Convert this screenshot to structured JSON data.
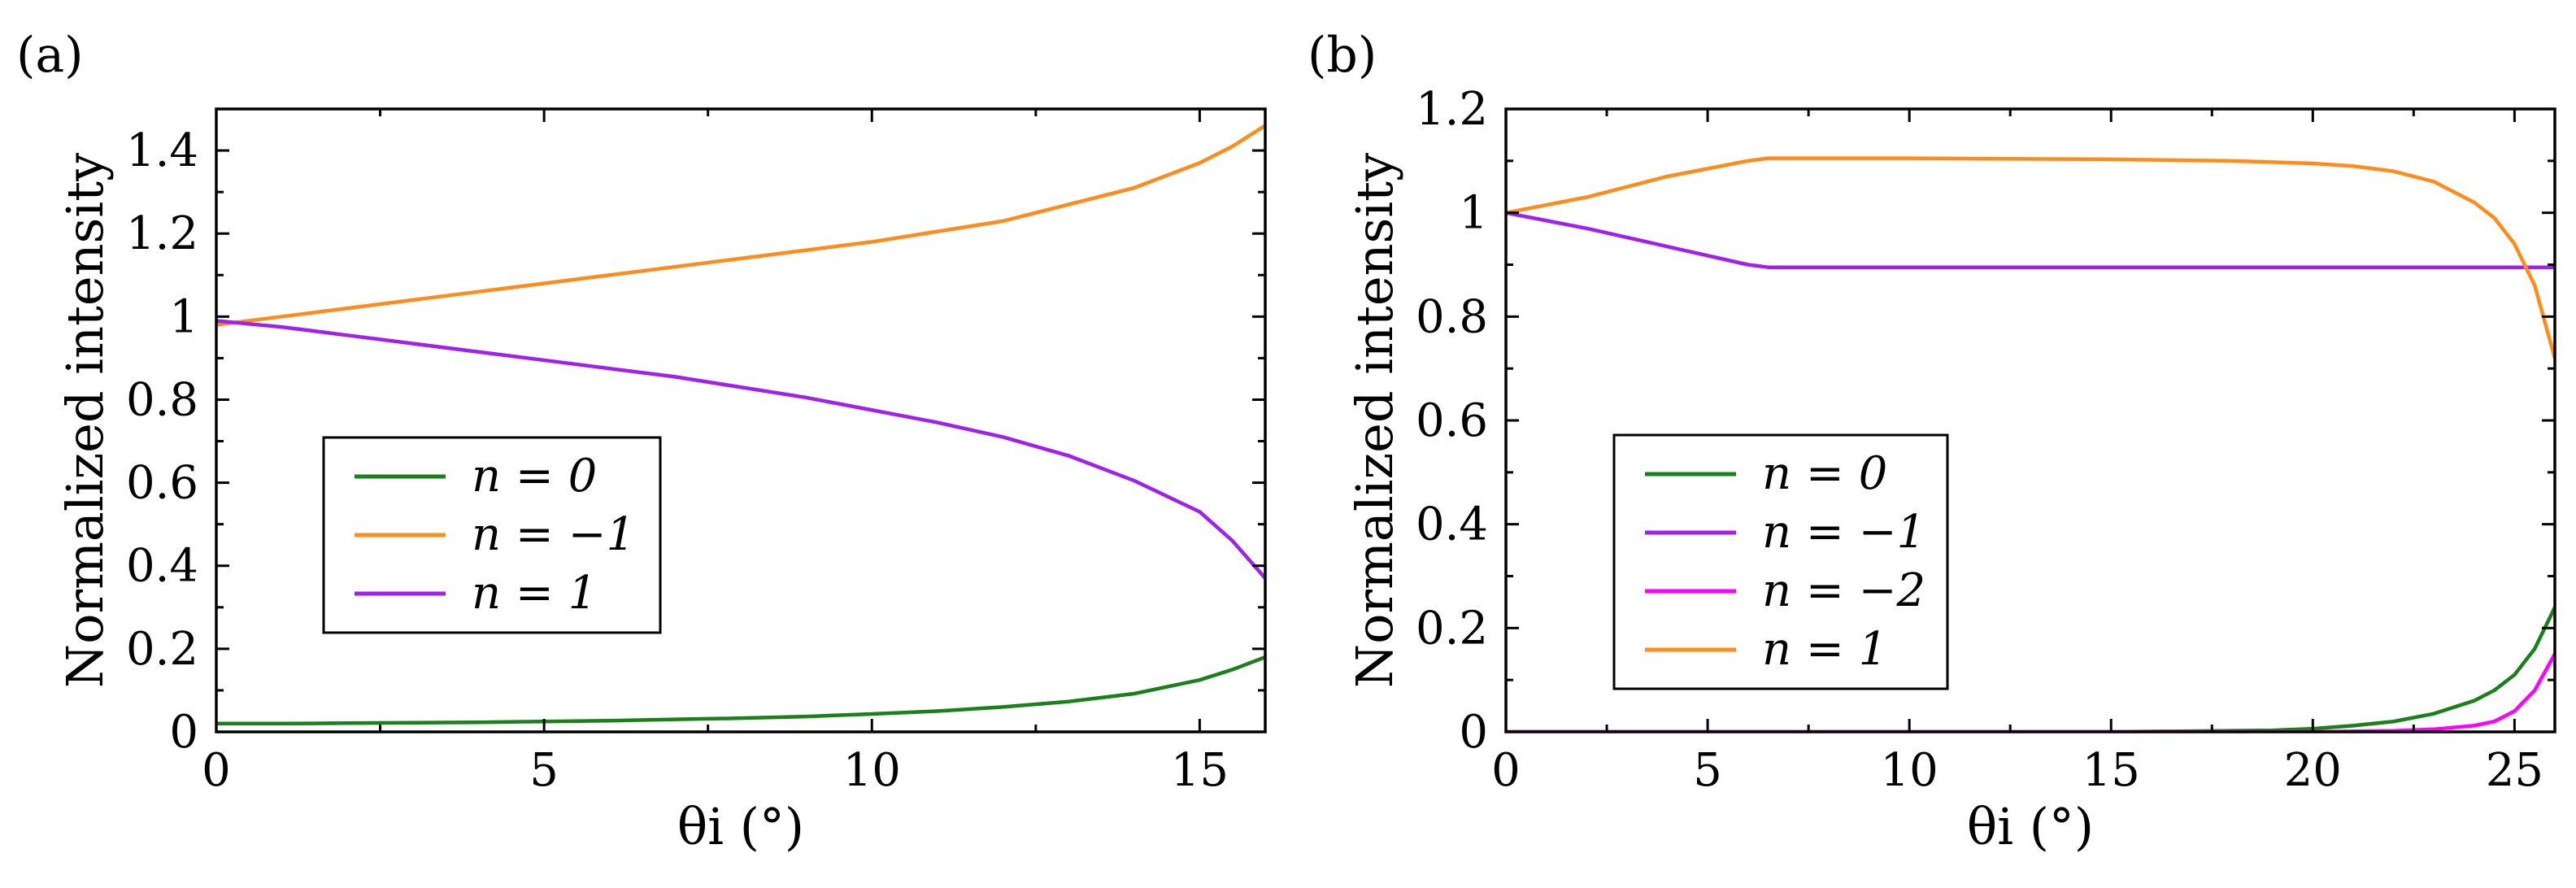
{
  "chart_data": [
    {
      "panel_label": "(a)",
      "type": "line",
      "xlabel": "θi (°)",
      "ylabel": "Normalized intensity",
      "xlim": [
        0,
        16
      ],
      "ylim": [
        0,
        1.5
      ],
      "xticks": [
        0,
        5,
        10,
        15
      ],
      "xtick_labels": [
        "0",
        "5",
        "10",
        "15"
      ],
      "yticks": [
        0,
        0.2,
        0.4,
        0.6,
        0.8,
        1,
        1.2,
        1.4
      ],
      "ytick_labels": [
        "0",
        "0.2",
        "0.4",
        "0.6",
        "0.8",
        "1",
        "1.2",
        "1.4"
      ],
      "legend_position": "middle-left",
      "series": [
        {
          "name": "n = 0",
          "color": "#1a801a",
          "x": [
            0,
            1,
            2,
            3,
            4,
            5,
            6,
            7,
            8,
            9,
            10,
            11,
            12,
            13,
            14,
            15,
            15.5,
            16
          ],
          "values": [
            0.02,
            0.02,
            0.021,
            0.022,
            0.023,
            0.025,
            0.027,
            0.03,
            0.033,
            0.037,
            0.043,
            0.05,
            0.06,
            0.073,
            0.092,
            0.125,
            0.15,
            0.18
          ]
        },
        {
          "name": "n = −1",
          "color": "#ff8c1a",
          "x": [
            0,
            1,
            2,
            3,
            4,
            5,
            6,
            7,
            8,
            9,
            10,
            11,
            12,
            13,
            14,
            15,
            15.5,
            16
          ],
          "values": [
            0.98,
            1.0,
            1.02,
            1.04,
            1.06,
            1.08,
            1.1,
            1.12,
            1.14,
            1.16,
            1.18,
            1.205,
            1.23,
            1.27,
            1.31,
            1.37,
            1.41,
            1.46
          ]
        },
        {
          "name": "n = 1",
          "color": "#a020f0",
          "x": [
            0,
            1,
            2,
            3,
            4,
            5,
            6,
            7,
            8,
            9,
            10,
            11,
            12,
            13,
            14,
            15,
            15.5,
            16
          ],
          "values": [
            0.99,
            0.975,
            0.955,
            0.935,
            0.915,
            0.895,
            0.875,
            0.855,
            0.83,
            0.805,
            0.775,
            0.745,
            0.71,
            0.665,
            0.605,
            0.53,
            0.46,
            0.37
          ]
        }
      ]
    },
    {
      "panel_label": "(b)",
      "type": "line",
      "xlabel": "θi (°)",
      "ylabel": "Normalized intensity",
      "xlim": [
        0,
        26
      ],
      "ylim": [
        0,
        1.2
      ],
      "xticks": [
        0,
        5,
        10,
        15,
        20,
        25
      ],
      "xtick_labels": [
        "0",
        "5",
        "10",
        "15",
        "20",
        "25"
      ],
      "yticks": [
        0,
        0.2,
        0.4,
        0.6,
        0.8,
        1,
        1.2
      ],
      "ytick_labels": [
        "0",
        "0.2",
        "0.4",
        "0.6",
        "0.8",
        "1",
        "1.2"
      ],
      "legend_position": "bottom-left",
      "series": [
        {
          "name": "n = 0",
          "color": "#1a801a",
          "x": [
            0,
            5,
            10,
            15,
            19,
            20,
            21,
            22,
            23,
            24,
            24.5,
            25,
            25.5,
            26
          ],
          "values": [
            0,
            0,
            0,
            0,
            0.003,
            0.006,
            0.012,
            0.02,
            0.035,
            0.06,
            0.08,
            0.11,
            0.16,
            0.24
          ]
        },
        {
          "name": "n = −1",
          "color": "#a020f0",
          "x": [
            0,
            2,
            4,
            6,
            6.5,
            10,
            15,
            20,
            25,
            26
          ],
          "values": [
            1.0,
            0.97,
            0.935,
            0.9,
            0.895,
            0.895,
            0.895,
            0.895,
            0.895,
            0.895
          ]
        },
        {
          "name": "n = −2",
          "color": "#ff00ff",
          "x": [
            0,
            10,
            20,
            22,
            23,
            24,
            24.5,
            25,
            25.5,
            26
          ],
          "values": [
            0,
            0,
            0,
            0.002,
            0.005,
            0.012,
            0.02,
            0.04,
            0.08,
            0.15
          ]
        },
        {
          "name": "n = 1",
          "color": "#ff8c1a",
          "x": [
            0,
            2,
            4,
            6,
            6.5,
            10,
            15,
            18,
            20,
            21,
            22,
            23,
            24,
            24.5,
            25,
            25.5,
            26
          ],
          "values": [
            1.0,
            1.03,
            1.07,
            1.1,
            1.105,
            1.105,
            1.103,
            1.1,
            1.095,
            1.09,
            1.08,
            1.06,
            1.02,
            0.99,
            0.94,
            0.86,
            0.72
          ]
        }
      ]
    }
  ]
}
